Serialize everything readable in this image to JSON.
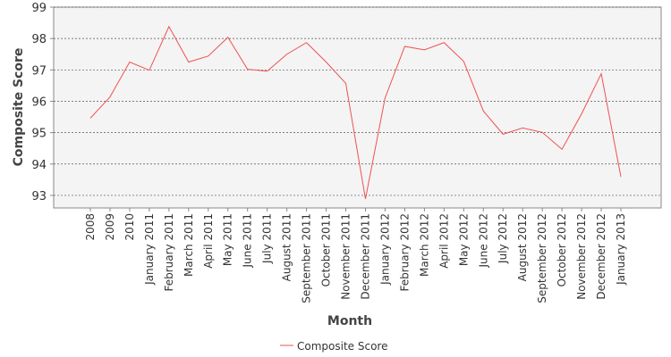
{
  "chart_data": {
    "type": "line",
    "x_label": "Month",
    "y_label": "Composite Score",
    "categories": [
      "2008",
      "2009",
      "2010",
      "January 2011",
      "February 2011",
      "March 2011",
      "April 2011",
      "May 2011",
      "June 2011",
      "July 2011",
      "August 2011",
      "September 2011",
      "October 2011",
      "November 2011",
      "December 2011",
      "January 2012",
      "February 2012",
      "March 2012",
      "April 2012",
      "May 2012",
      "June 2012",
      "July 2012",
      "August 2012",
      "September 2012",
      "October 2012",
      "November 2012",
      "December 2012",
      "January 2013"
    ],
    "series": [
      {
        "name": "Composite Score",
        "color": "#f05050",
        "values": [
          95.46,
          96.14,
          97.25,
          96.99,
          98.38,
          97.25,
          97.44,
          98.04,
          97.02,
          96.96,
          97.5,
          97.87,
          97.25,
          96.57,
          92.89,
          96.11,
          97.75,
          97.64,
          97.87,
          97.27,
          95.69,
          94.95,
          95.15,
          95.01,
          94.47,
          95.6,
          96.88,
          93.59
        ]
      }
    ],
    "ylim": [
      92.6,
      99
    ],
    "yticks": [
      93,
      94,
      95,
      96,
      97,
      98,
      99
    ],
    "grid": true,
    "legend": "bottom"
  }
}
